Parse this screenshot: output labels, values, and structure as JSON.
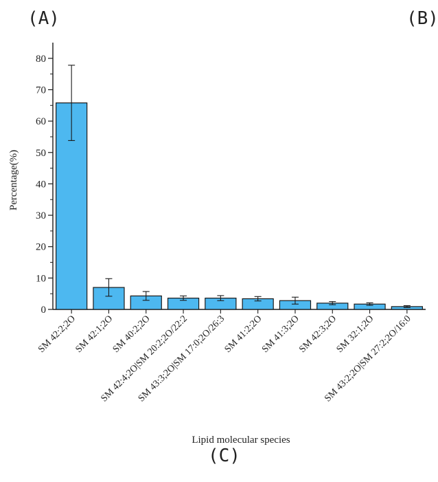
{
  "panel_labels": {
    "a": "(A)",
    "b": "(B)",
    "c": "(C)"
  },
  "colors": {
    "bar_fill": "#4db8f0",
    "bar_stroke": "#1a1a1a",
    "axis": "#1a1a1a"
  },
  "chart_data": {
    "type": "bar",
    "xlabel": "Lipid molecular species",
    "ylabel": "Percentage(%)",
    "ylim": [
      0,
      85
    ],
    "yticks": [
      0,
      10,
      20,
      30,
      40,
      50,
      60,
      70,
      80
    ],
    "ytick_labels": [
      "0",
      "10",
      "20",
      "30",
      "40",
      "50",
      "60",
      "70",
      "80"
    ],
    "grid": false,
    "categories": [
      "SM 42:2;2O",
      "SM 42:1;2O",
      "SM 40:2;2O",
      "SM 42:4;2O|SM 20:2;2O/22:2",
      "SM 43:3;2O|SM 17:0;2O/26:3",
      "SM 41:2;2O",
      "SM 41:3;2O",
      "SM 42:3;2O",
      "SM 32:1;2O",
      "SM 43:2;2O|SM 27:2;2O/16:0"
    ],
    "values": [
      65.8,
      7.0,
      4.3,
      3.6,
      3.6,
      3.4,
      2.8,
      2.0,
      1.7,
      0.9
    ],
    "error": [
      12.0,
      2.8,
      1.4,
      0.7,
      0.8,
      0.7,
      1.1,
      0.5,
      0.4,
      0.3
    ]
  }
}
